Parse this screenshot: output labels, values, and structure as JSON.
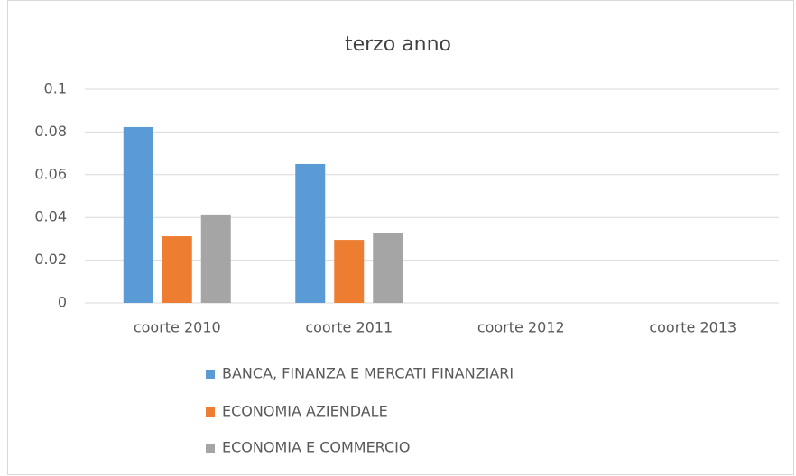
{
  "chart_data": {
    "type": "bar",
    "title": "terzo anno",
    "categories": [
      "coorte 2010",
      "coorte 2011",
      "coorte 2012",
      "coorte 2013"
    ],
    "series": [
      {
        "name": "BANCA, FINANZA E MERCATI FINANZIARI",
        "color": "#5b9bd5",
        "values": [
          0.0823,
          0.065,
          null,
          null
        ]
      },
      {
        "name": "ECONOMIA AZIENDALE",
        "color": "#ed7d31",
        "values": [
          0.0312,
          0.0295,
          null,
          null
        ]
      },
      {
        "name": "ECONOMIA E COMMERCIO",
        "color": "#a5a5a5",
        "values": [
          0.0414,
          0.0325,
          null,
          null
        ]
      }
    ],
    "ylim": [
      0,
      0.1
    ],
    "yticks": [
      0,
      0.02,
      0.04,
      0.06,
      0.08,
      0.1
    ],
    "grid": true,
    "legend": "bottom"
  }
}
